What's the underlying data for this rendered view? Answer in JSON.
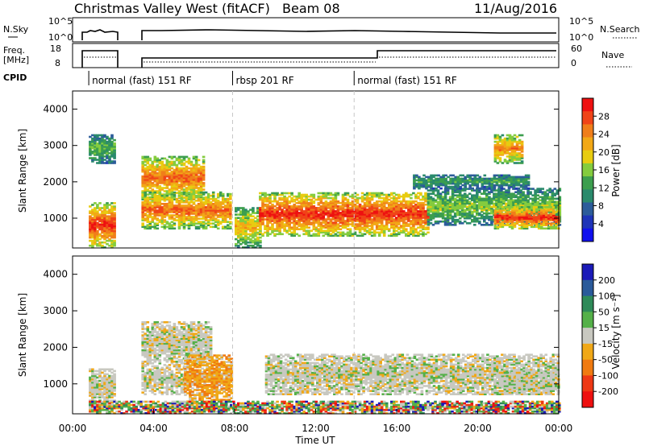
{
  "header": {
    "title": "Christmas Valley West (fitACF)",
    "beam": "Beam 08",
    "date": "11/Aug/2016"
  },
  "top_panels": {
    "nsky_label": "N.Sky",
    "nsky_ticks": [
      "10^5",
      "10^0"
    ],
    "nsearch_label": "N.Search",
    "nsearch_ticks": [
      "10^5",
      "10^0"
    ],
    "freq_label_1": "Freq.",
    "freq_label_2": "[MHz]",
    "freq_ticks": [
      "18",
      "8"
    ],
    "nave_label": "Nave",
    "nave_ticks": [
      "60",
      "0"
    ],
    "cpid_label": "CPID",
    "cpid_segments": [
      {
        "label": "normal (fast) 151 RF",
        "start_h": 0.8
      },
      {
        "label": "rbsp 201 RF",
        "start_h": 7.9
      },
      {
        "label": "normal (fast) 151 RF",
        "start_h": 13.9
      }
    ]
  },
  "chart_data": [
    {
      "type": "heatmap",
      "name": "power",
      "xlabel": "",
      "ylabel": "Slant Range [km]",
      "xlim": [
        0,
        24
      ],
      "ylim": [
        180,
        4500
      ],
      "yticks": [
        "4000",
        "3000",
        "2000",
        "1000"
      ],
      "ytick_values": [
        4000,
        3000,
        2000,
        1000
      ],
      "colorbar": {
        "label": "Power [dB]",
        "ticks": [
          "28",
          "24",
          "20",
          "16",
          "12",
          "8",
          "4"
        ],
        "colors": [
          "#ee1111",
          "#f04418",
          "#f07e1a",
          "#f2a816",
          "#e8cc10",
          "#84cc3e",
          "#3c9e4e",
          "#2a8a6c",
          "#2c5c9a",
          "#1e34b8",
          "#1010ee"
        ]
      },
      "regions": [
        {
          "t0": 0.8,
          "t1": 2.1,
          "r0": 180,
          "r1": 1400,
          "level": 0.85
        },
        {
          "t0": 0.8,
          "t1": 2.1,
          "r0": 2500,
          "r1": 3300,
          "level": 0.4
        },
        {
          "t0": 3.4,
          "t1": 6.5,
          "r0": 1500,
          "r1": 2700,
          "level": 0.75
        },
        {
          "t0": 3.4,
          "t1": 7.8,
          "r0": 700,
          "r1": 1700,
          "level": 0.75
        },
        {
          "t0": 8.0,
          "t1": 9.2,
          "r0": 180,
          "r1": 1300,
          "level": 0.6
        },
        {
          "t0": 9.2,
          "t1": 17.5,
          "r0": 500,
          "r1": 1700,
          "level": 0.85
        },
        {
          "t0": 17.5,
          "t1": 24,
          "r0": 800,
          "r1": 1800,
          "level": 0.45
        },
        {
          "t0": 20.8,
          "t1": 24,
          "r0": 700,
          "r1": 1300,
          "level": 0.85
        },
        {
          "t0": 20.8,
          "t1": 22.2,
          "r0": 2500,
          "r1": 3300,
          "level": 0.7
        },
        {
          "t0": 16.8,
          "t1": 22.5,
          "r0": 1800,
          "r1": 2200,
          "level": 0.35
        }
      ]
    },
    {
      "type": "heatmap",
      "name": "velocity",
      "xlabel": "Time UT",
      "ylabel": "Slant Range [km]",
      "xlim": [
        0,
        24
      ],
      "ylim": [
        180,
        4500
      ],
      "xticks": [
        "00:00",
        "04:00",
        "08:00",
        "12:00",
        "16:00",
        "20:00",
        "00:00"
      ],
      "xtick_values": [
        0,
        4,
        8,
        12,
        16,
        20,
        24
      ],
      "yticks": [
        "4000",
        "3000",
        "2000",
        "1000"
      ],
      "ytick_values": [
        4000,
        3000,
        2000,
        1000
      ],
      "colorbar": {
        "label": "Velocity [m s⁻¹]",
        "ticks": [
          "200",
          "100",
          "50",
          "15",
          "-15",
          "-50",
          "-100",
          "-200"
        ],
        "colors": [
          "#1a1ab8",
          "#2a5a9a",
          "#2e8a58",
          "#54b048",
          "#c8c8c0",
          "#f0a818",
          "#f07a10",
          "#ee3814",
          "#ee1010"
        ]
      },
      "regions": [
        {
          "t0": 0.8,
          "t1": 2.1,
          "r0": 300,
          "r1": 1400,
          "level": "gray"
        },
        {
          "t0": 3.4,
          "t1": 6.8,
          "r0": 1500,
          "r1": 2700,
          "level": "gray"
        },
        {
          "t0": 3.4,
          "t1": 5.5,
          "r0": 700,
          "r1": 1500,
          "level": "gray"
        },
        {
          "t0": 5.5,
          "t1": 7.8,
          "r0": 500,
          "r1": 1800,
          "level": "orange"
        },
        {
          "t0": 9.5,
          "t1": 24,
          "r0": 700,
          "r1": 1800,
          "level": "gray"
        },
        {
          "t0": 20.8,
          "t1": 24,
          "r0": 700,
          "r1": 1300,
          "level": "gray"
        },
        {
          "t0": 0.8,
          "t1": 24,
          "r0": 180,
          "r1": 500,
          "level": "green"
        }
      ]
    }
  ],
  "colors": {
    "axis": "#000000",
    "dashed_marker": "#c8c8c8"
  }
}
